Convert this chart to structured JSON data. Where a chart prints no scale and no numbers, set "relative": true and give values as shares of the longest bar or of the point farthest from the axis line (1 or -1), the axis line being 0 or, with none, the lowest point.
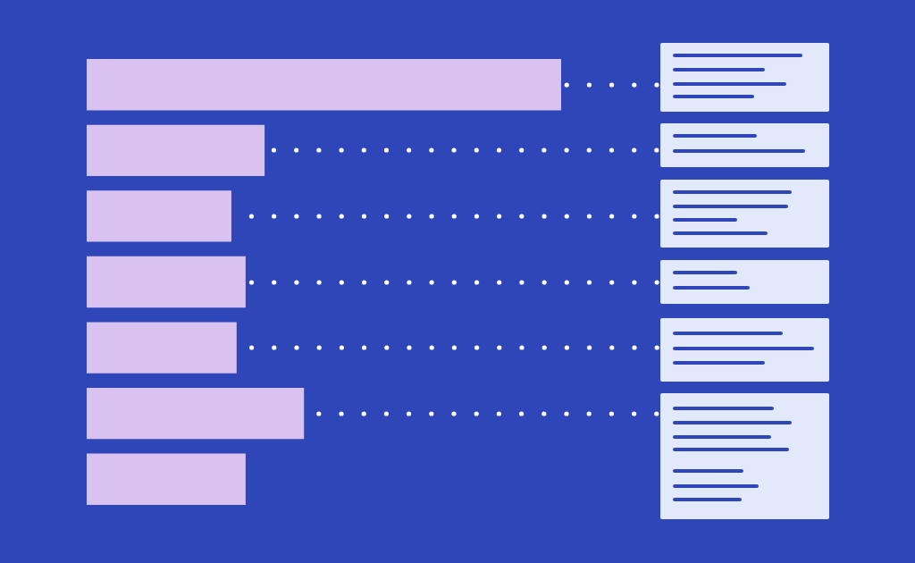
{
  "chart_data": {
    "type": "bar",
    "orientation": "horizontal",
    "relative": true,
    "categories": [
      null,
      null,
      null,
      null,
      null,
      null,
      null
    ],
    "values": [
      1,
      0.375,
      0.305,
      0.335,
      0.316,
      0.458,
      0.335
    ],
    "color": "#d9c2f0"
  }
}
